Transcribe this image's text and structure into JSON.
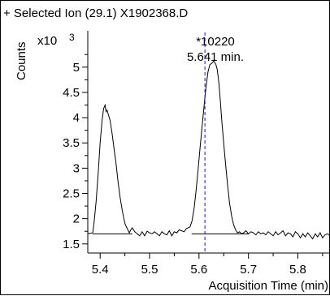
{
  "chart_data": {
    "type": "line",
    "title": "+ Selected Ion (29.1) X1902368.D",
    "xlabel": "Acquisition Time (min)",
    "ylabel": "Counts",
    "y_multiplier_label": "x10",
    "y_multiplier_exponent": "3",
    "xlim": [
      5.375,
      5.865
    ],
    "ylim": [
      1.32,
      5.72
    ],
    "x_ticks": [
      5.4,
      5.5,
      5.6,
      5.7,
      5.8
    ],
    "x_tick_labels": [
      "5.4",
      "5.5",
      "5.6",
      "5.7",
      "5.8"
    ],
    "y_ticks": [
      1.5,
      2,
      2.5,
      3,
      3.5,
      4,
      4.5,
      5
    ],
    "y_tick_labels": [
      "1.5",
      "2",
      "2.5",
      "3",
      "3.5",
      "4",
      "4.5",
      "5"
    ],
    "grid": false,
    "series": [
      {
        "color": "#000000",
        "x": [
          5.375,
          5.385,
          5.388,
          5.392,
          5.396,
          5.4,
          5.404,
          5.407,
          5.41,
          5.412,
          5.414,
          5.417,
          5.42,
          5.424,
          5.428,
          5.432,
          5.436,
          5.44,
          5.444,
          5.448,
          5.451,
          5.455,
          5.459,
          5.462,
          5.465,
          5.47,
          5.475,
          5.48,
          5.485,
          5.49,
          5.495,
          5.5,
          5.505,
          5.51,
          5.515,
          5.52,
          5.525,
          5.53,
          5.535,
          5.54,
          5.545,
          5.55,
          5.555,
          5.56,
          5.565,
          5.57,
          5.574,
          5.578,
          5.582,
          5.586,
          5.59,
          5.594,
          5.598,
          5.602,
          5.606,
          5.61,
          5.614,
          5.618,
          5.622,
          5.626,
          5.63,
          5.634,
          5.637,
          5.64,
          5.643,
          5.646,
          5.65,
          5.654,
          5.658,
          5.662,
          5.666,
          5.67,
          5.674,
          5.678,
          5.682,
          5.686,
          5.69,
          5.695,
          5.7,
          5.705,
          5.71,
          5.715,
          5.72,
          5.725,
          5.73,
          5.735,
          5.74,
          5.745,
          5.75,
          5.755,
          5.76,
          5.765,
          5.77,
          5.775,
          5.78,
          5.785,
          5.79,
          5.795,
          5.8,
          5.805,
          5.81,
          5.815,
          5.82,
          5.825,
          5.83,
          5.835,
          5.84,
          5.845,
          5.85,
          5.855,
          5.86,
          5.865
        ],
        "y": [
          1.7,
          1.72,
          1.95,
          2.35,
          2.9,
          3.5,
          3.95,
          4.18,
          4.25,
          4.12,
          4.15,
          4.05,
          3.95,
          3.7,
          3.4,
          3.1,
          2.75,
          2.45,
          2.2,
          2.0,
          1.88,
          1.8,
          1.72,
          1.78,
          1.82,
          1.74,
          1.7,
          1.66,
          1.74,
          1.66,
          1.75,
          1.72,
          1.7,
          1.74,
          1.7,
          1.66,
          1.74,
          1.7,
          1.68,
          1.76,
          1.66,
          1.74,
          1.72,
          1.78,
          1.76,
          1.74,
          1.8,
          1.82,
          1.84,
          1.96,
          2.2,
          2.55,
          2.95,
          3.4,
          3.8,
          4.2,
          4.6,
          4.9,
          5.05,
          5.08,
          5.12,
          5.06,
          4.95,
          4.7,
          4.35,
          3.95,
          3.5,
          3.05,
          2.65,
          2.3,
          2.05,
          1.88,
          1.78,
          1.72,
          1.74,
          1.7,
          1.72,
          1.76,
          1.7,
          1.74,
          1.72,
          1.68,
          1.74,
          1.7,
          1.72,
          1.68,
          1.74,
          1.7,
          1.66,
          1.74,
          1.68,
          1.72,
          1.76,
          1.66,
          1.72,
          1.7,
          1.64,
          1.74,
          1.7,
          1.62,
          1.7,
          1.64,
          1.72,
          1.66,
          1.6,
          1.7,
          1.64,
          1.72,
          1.62,
          1.68,
          1.7,
          1.66
        ]
      }
    ],
    "baselines": [
      {
        "x": [
          5.385,
          5.465
        ],
        "y": [
          1.7,
          1.7
        ]
      },
      {
        "x": [
          5.585,
          5.7
        ],
        "y": [
          1.7,
          1.7
        ]
      }
    ],
    "marker_line": {
      "x": 5.612,
      "style": "dashed",
      "color": "#1a1a9c"
    },
    "annotation": {
      "line1": "*10220",
      "line2": "5.641 min.",
      "x": 5.641
    }
  }
}
